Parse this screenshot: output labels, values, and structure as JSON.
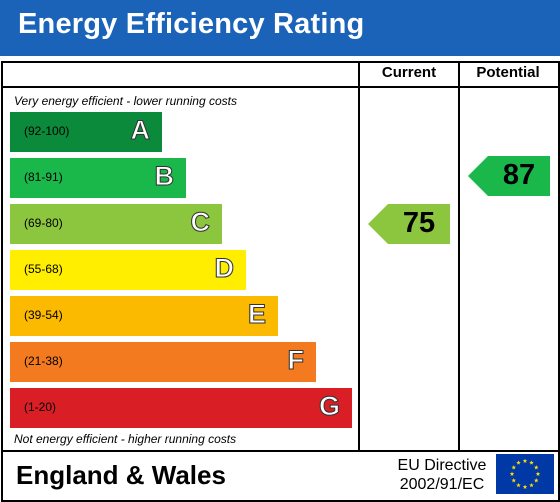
{
  "header": {
    "title": "Energy Efficiency Rating"
  },
  "columns": {
    "current": "Current",
    "potential": "Potential"
  },
  "notes": {
    "top": "Very energy efficient - lower running costs",
    "bottom": "Not energy efficient - higher running costs"
  },
  "bands": [
    {
      "letter": "A",
      "range": "(92-100)",
      "color": "#0b8a3c"
    },
    {
      "letter": "B",
      "range": "(81-91)",
      "color": "#1ab74a"
    },
    {
      "letter": "C",
      "range": "(69-80)",
      "color": "#8cc63f"
    },
    {
      "letter": "D",
      "range": "(55-68)",
      "color": "#ffee00"
    },
    {
      "letter": "E",
      "range": "(39-54)",
      "color": "#fbb900"
    },
    {
      "letter": "F",
      "range": "(21-38)",
      "color": "#f47a20"
    },
    {
      "letter": "G",
      "range": "(1-20)",
      "color": "#d91e26"
    }
  ],
  "current": {
    "value": "75",
    "color": "#8cc63f"
  },
  "potential": {
    "value": "87",
    "color": "#1ab74a"
  },
  "footer": {
    "region": "England & Wales",
    "directive_line1": "EU Directive",
    "directive_line2": "2002/91/EC",
    "flag_color": "#0039a6",
    "star_color": "#ffdd00"
  }
}
